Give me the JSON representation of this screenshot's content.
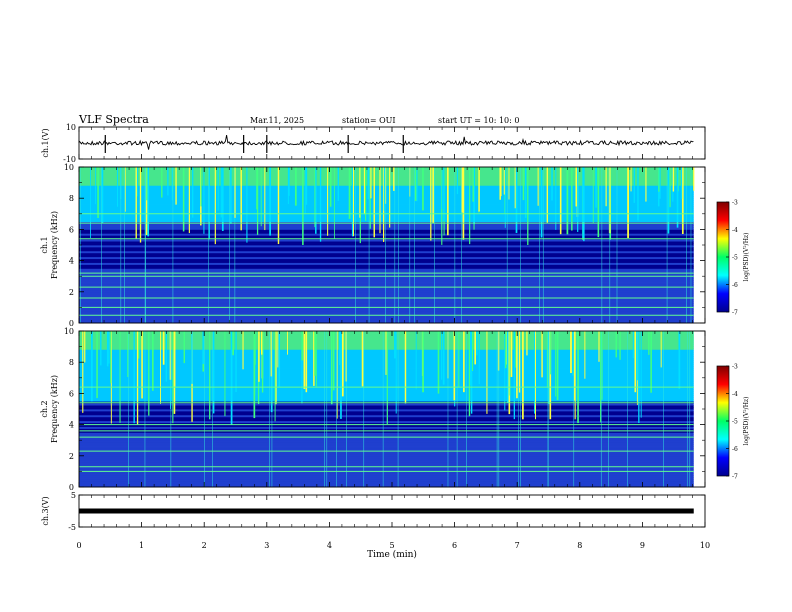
{
  "header": {
    "title": "VLF Spectra",
    "date": "Mar.11, 2025",
    "station": "station= OUI",
    "start_ut": "start  UT =   10: 10: 0"
  },
  "colors": {
    "cb_stops": [
      "#7f0000",
      "#ff0000",
      "#ffff00",
      "#00ff66",
      "#00ffff",
      "#0000ff",
      "#00008f"
    ],
    "bg_low": "#00008f",
    "bg_mid": "#1f3fcf",
    "bg_high": "#00c8ff",
    "burst": "#80ff30"
  },
  "chart_data": [
    {
      "type": "line",
      "name": "ch1-waveform",
      "ylabel": "ch.1(V)",
      "yticks": [
        "10",
        "-10"
      ],
      "ylim": [
        -10,
        10
      ],
      "xlim": [
        0,
        10
      ],
      "baseline": 0
    },
    {
      "type": "heatmap",
      "name": "ch1-spectrogram",
      "ylabel": "Frequency (kHz)",
      "ylabel2": "ch.1",
      "yticks": [
        "0",
        "2",
        "4",
        "6",
        "8",
        "10"
      ],
      "ylim": [
        0,
        10
      ],
      "xlim": [
        0,
        10
      ],
      "colorbar": {
        "label": "log(PSD)(V²/Hz)",
        "ticks": [
          "-3",
          "-4",
          "-5",
          "-6",
          "-7"
        ],
        "range": [
          -7,
          -3
        ]
      },
      "bright_lines_khz": [
        0.5,
        1.0,
        1.6,
        2.3,
        3.0,
        3.2,
        5.4,
        6.4,
        7.0
      ],
      "burst_band_khz": [
        6.5,
        10
      ]
    },
    {
      "type": "heatmap",
      "name": "ch2-spectrogram",
      "ylabel": "Frequency (kHz)",
      "ylabel2": "ch.2",
      "yticks": [
        "0",
        "2",
        "4",
        "6",
        "8",
        "10"
      ],
      "ylim": [
        0,
        10
      ],
      "xlim": [
        0,
        10
      ],
      "colorbar": {
        "label": "log(PSD)(V²/Hz)",
        "ticks": [
          "-3",
          "-4",
          "-5",
          "-6",
          "-7"
        ],
        "range": [
          -7,
          -3
        ]
      },
      "bright_lines_khz": [
        1.0,
        1.3,
        2.3,
        3.2,
        3.6,
        4.0,
        5.4,
        6.4
      ],
      "burst_band_khz": [
        5.5,
        10
      ]
    },
    {
      "type": "line",
      "name": "ch3-waveform",
      "ylabel": "ch.3(V)",
      "yticks": [
        "5",
        "-5"
      ],
      "ylim": [
        -5,
        5
      ],
      "xlim": [
        0,
        10
      ],
      "baseline": 0
    }
  ],
  "xaxis": {
    "label": "Time (min)",
    "ticks": [
      "0",
      "1",
      "2",
      "3",
      "4",
      "5",
      "6",
      "7",
      "8",
      "9",
      "10"
    ],
    "data_end_min": 9.82
  }
}
